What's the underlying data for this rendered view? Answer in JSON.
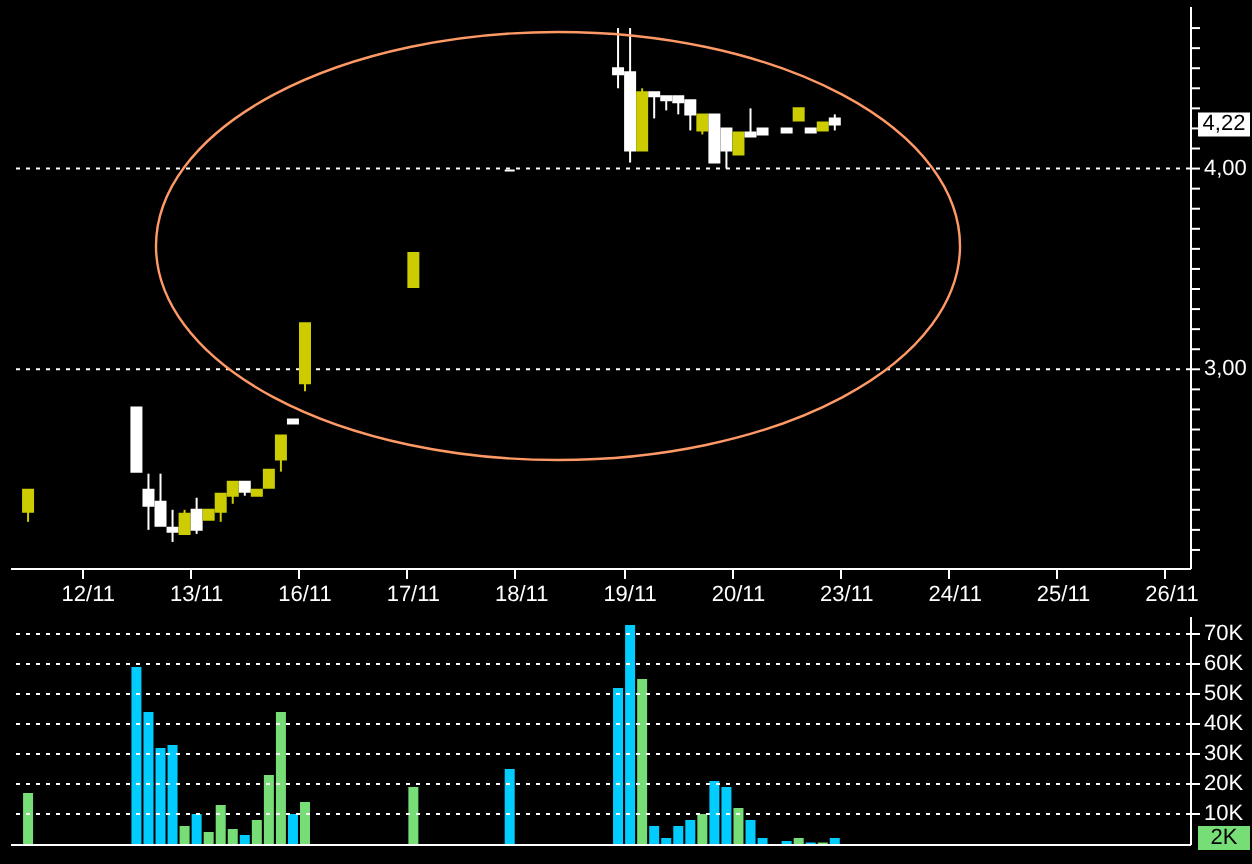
{
  "chart_data": [
    {
      "type": "candlestick",
      "categories": [
        null,
        null,
        null,
        null,
        null,
        null,
        "12/11",
        null,
        null,
        null,
        null,
        null,
        null,
        null,
        null,
        "13/11",
        null,
        null,
        null,
        null,
        null,
        null,
        null,
        null,
        "16/11",
        null,
        null,
        null,
        null,
        null,
        null,
        null,
        null,
        "17/11",
        null,
        null,
        null,
        null,
        null,
        null,
        null,
        null,
        "18/11",
        null,
        null,
        null,
        null,
        null,
        null,
        null,
        null,
        "19/11",
        null,
        null,
        null,
        null,
        null,
        null,
        null,
        null,
        "20/11",
        null,
        null,
        null,
        null,
        null,
        null,
        null,
        null,
        "23/11",
        null,
        null,
        null,
        null,
        null,
        null,
        null,
        null,
        "24/11",
        null,
        null,
        null,
        null,
        null,
        null,
        null,
        null,
        "25/11",
        null,
        null,
        null,
        null,
        null,
        null,
        null,
        null,
        "26/11",
        null
      ],
      "ohlc": [
        null,
        [
          2.29,
          2.4,
          2.24,
          2.4
        ],
        null,
        null,
        null,
        null,
        null,
        null,
        null,
        null,
        [
          2.81,
          2.81,
          2.49,
          2.49
        ],
        [
          2.4,
          2.48,
          2.2,
          2.32
        ],
        [
          2.34,
          2.48,
          2.22,
          2.22
        ],
        [
          2.21,
          2.3,
          2.14,
          2.19
        ],
        [
          2.18,
          2.3,
          2.18,
          2.28
        ],
        [
          2.3,
          2.36,
          2.18,
          2.2
        ],
        [
          2.25,
          2.3,
          2.25,
          2.3
        ],
        [
          2.29,
          2.38,
          2.24,
          2.38
        ],
        [
          2.37,
          2.44,
          2.33,
          2.44
        ],
        [
          2.44,
          2.44,
          2.37,
          2.39
        ],
        [
          2.37,
          2.4,
          2.37,
          2.4
        ],
        [
          2.41,
          2.5,
          2.41,
          2.5
        ],
        [
          2.55,
          2.67,
          2.49,
          2.67
        ],
        [
          2.75,
          2.75,
          2.73,
          2.73
        ],
        [
          2.93,
          3.23,
          2.89,
          3.23
        ],
        null,
        null,
        null,
        null,
        null,
        null,
        null,
        null,
        [
          3.41,
          3.58,
          3.41,
          3.58
        ],
        null,
        null,
        null,
        null,
        null,
        null,
        null,
        [
          3.99,
          3.99,
          3.99,
          3.99
        ],
        null,
        null,
        null,
        null,
        null,
        null,
        null,
        null,
        [
          4.5,
          4.7,
          4.4,
          4.47
        ],
        [
          4.48,
          4.7,
          4.03,
          4.09
        ],
        [
          4.09,
          4.4,
          4.09,
          4.38
        ],
        [
          4.38,
          4.38,
          4.25,
          4.36
        ],
        [
          4.36,
          4.36,
          4.29,
          4.34
        ],
        [
          4.36,
          4.36,
          4.27,
          4.33
        ],
        [
          4.34,
          4.34,
          4.19,
          4.27
        ],
        [
          4.19,
          4.27,
          4.17,
          4.27
        ],
        [
          4.27,
          4.27,
          4.03,
          4.03
        ],
        [
          4.2,
          4.2,
          4.0,
          4.09
        ],
        [
          4.07,
          4.18,
          4.07,
          4.18
        ],
        [
          4.18,
          4.3,
          4.16,
          4.16
        ],
        [
          4.2,
          4.2,
          4.17,
          4.17
        ],
        null,
        [
          4.2,
          4.2,
          4.18,
          4.18
        ],
        [
          4.24,
          4.3,
          4.24,
          4.3
        ],
        [
          4.2,
          4.2,
          4.18,
          4.18
        ],
        [
          4.19,
          4.23,
          4.19,
          4.23
        ],
        [
          4.25,
          4.27,
          4.19,
          4.22
        ],
        null,
        null,
        null,
        null,
        null,
        null,
        null,
        null,
        null,
        null,
        null,
        null,
        null,
        null,
        null,
        null,
        null,
        null,
        null,
        null,
        null,
        null,
        null,
        null,
        null,
        null,
        null,
        null,
        null
      ],
      "colors": [
        null,
        "#cccc00",
        null,
        null,
        null,
        null,
        null,
        null,
        null,
        null,
        "#ffffff",
        "#ffffff",
        "#ffffff",
        "#ffffff",
        "#cccc00",
        "#ffffff",
        "#cccc00",
        "#cccc00",
        "#cccc00",
        "#ffffff",
        "#cccc00",
        "#cccc00",
        "#cccc00",
        "#ffffff",
        "#cccc00",
        null,
        null,
        null,
        null,
        null,
        null,
        null,
        null,
        "#cccc00",
        null,
        null,
        null,
        null,
        null,
        null,
        null,
        "#ffffff",
        null,
        null,
        null,
        null,
        null,
        null,
        null,
        null,
        "#ffffff",
        "#ffffff",
        "#cccc00",
        "#ffffff",
        "#ffffff",
        "#ffffff",
        "#ffffff",
        "#cccc00",
        "#ffffff",
        "#ffffff",
        "#cccc00",
        "#ffffff",
        "#ffffff",
        null,
        "#ffffff",
        "#cccc00",
        "#ffffff",
        "#cccc00",
        "#ffffff",
        null,
        null,
        null,
        null,
        null,
        null,
        null,
        null,
        null,
        null,
        null,
        null,
        null,
        null,
        null,
        null,
        null,
        null,
        null,
        null,
        null,
        null,
        null,
        null,
        null,
        null,
        null,
        null,
        null
      ],
      "ylim": [
        2.01,
        4.81
      ],
      "yticks": [
        {
          "value": 2.1,
          "label": null
        },
        {
          "value": 2.2,
          "label": null
        },
        {
          "value": 2.3,
          "label": null
        },
        {
          "value": 2.4,
          "label": null
        },
        {
          "value": 2.5,
          "label": null
        },
        {
          "value": 2.6,
          "label": null
        },
        {
          "value": 2.7,
          "label": null
        },
        {
          "value": 2.8,
          "label": null
        },
        {
          "value": 2.9,
          "label": null
        },
        {
          "value": 3,
          "label": "3,00"
        },
        {
          "value": 3.1,
          "label": null
        },
        {
          "value": 3.2,
          "label": null
        },
        {
          "value": 3.3,
          "label": null
        },
        {
          "value": 3.4,
          "label": null
        },
        {
          "value": 3.5,
          "label": null
        },
        {
          "value": 3.6,
          "label": null
        },
        {
          "value": 3.7,
          "label": null
        },
        {
          "value": 3.8,
          "label": null
        },
        {
          "value": 3.9,
          "label": null
        },
        {
          "value": 4,
          "label": "4,00"
        },
        {
          "value": 4.1,
          "label": null
        },
        {
          "value": 4.2,
          "label": null
        },
        {
          "value": 4.3,
          "label": null
        },
        {
          "value": 4.4,
          "label": null
        },
        {
          "value": 4.5,
          "label": null
        },
        {
          "value": 4.6,
          "label": null
        },
        {
          "value": 4.7,
          "label": null
        }
      ],
      "annotations": [
        "4,22"
      ],
      "grid": "y"
    },
    {
      "type": "bar",
      "categories": [
        null,
        null,
        null,
        null,
        null,
        null,
        null,
        null,
        null,
        null,
        null,
        null,
        null,
        null,
        null,
        null,
        null,
        null,
        null,
        null,
        null,
        null,
        null,
        null,
        null,
        null,
        null,
        null,
        null,
        null,
        null,
        null,
        null,
        null,
        null,
        null,
        null,
        null,
        null,
        null,
        null,
        null,
        null,
        null,
        null,
        null,
        null,
        null,
        null,
        null,
        null,
        null,
        null,
        null,
        null,
        null,
        null,
        null,
        null,
        null,
        null,
        null,
        null,
        null,
        null,
        null,
        null,
        null,
        null,
        null,
        null,
        null,
        null,
        null,
        null,
        null,
        null,
        null,
        null,
        null,
        null,
        null,
        null,
        null,
        null,
        null,
        null,
        null,
        null,
        null,
        null,
        null,
        null,
        null,
        null,
        null,
        null,
        null
      ],
      "values": [
        null,
        17000,
        null,
        null,
        null,
        null,
        null,
        null,
        null,
        null,
        59000,
        44000,
        32000,
        33000,
        6000,
        10000,
        4000,
        13000,
        5000,
        3000,
        8000,
        23000,
        44000,
        10000,
        14000,
        null,
        null,
        null,
        null,
        null,
        null,
        null,
        null,
        19000,
        null,
        null,
        null,
        null,
        null,
        null,
        null,
        25000,
        null,
        null,
        null,
        null,
        null,
        null,
        null,
        null,
        52000,
        73000,
        55000,
        6000,
        2000,
        6000,
        8000,
        10000,
        21000,
        19000,
        12000,
        8000,
        2000,
        null,
        1000,
        2000,
        500,
        500,
        2000,
        null,
        null,
        null,
        null,
        null,
        null,
        null,
        null,
        null,
        null,
        null,
        null,
        null,
        null,
        null,
        null,
        null,
        null,
        null,
        null,
        null,
        null,
        null,
        null,
        null,
        null,
        null,
        null,
        null
      ],
      "colors": [
        null,
        "#77dd77",
        null,
        null,
        null,
        null,
        null,
        null,
        null,
        null,
        "#00ccff",
        "#00ccff",
        "#00ccff",
        "#00ccff",
        "#77dd77",
        "#00ccff",
        "#77dd77",
        "#77dd77",
        "#77dd77",
        "#00ccff",
        "#77dd77",
        "#77dd77",
        "#77dd77",
        "#00ccff",
        "#77dd77",
        null,
        null,
        null,
        null,
        null,
        null,
        null,
        null,
        "#77dd77",
        null,
        null,
        null,
        null,
        null,
        null,
        null,
        "#00ccff",
        null,
        null,
        null,
        null,
        null,
        null,
        null,
        null,
        "#00ccff",
        "#00ccff",
        "#77dd77",
        "#00ccff",
        "#00ccff",
        "#00ccff",
        "#00ccff",
        "#77dd77",
        "#00ccff",
        "#00ccff",
        "#77dd77",
        "#00ccff",
        "#00ccff",
        null,
        "#00ccff",
        "#77dd77",
        "#00ccff",
        "#77dd77",
        "#00ccff",
        null,
        null,
        null,
        null,
        null,
        null,
        null,
        null,
        null,
        null,
        null,
        null,
        null,
        null,
        null,
        null,
        null,
        null,
        null,
        null,
        null,
        null,
        null,
        null,
        null,
        null,
        null,
        null,
        null
      ],
      "ylim": [
        0,
        76000
      ],
      "yticks": [
        {
          "value": 10000,
          "label": "10K"
        },
        {
          "value": 20000,
          "label": "20K"
        },
        {
          "value": 30000,
          "label": "30K"
        },
        {
          "value": 40000,
          "label": "40K"
        },
        {
          "value": 50000,
          "label": "50K"
        },
        {
          "value": 60000,
          "label": "60K"
        },
        {
          "value": 70000,
          "label": "70K"
        }
      ],
      "annotations": [
        "2K"
      ],
      "tick_labels": "y",
      "grid": "y"
    }
  ]
}
